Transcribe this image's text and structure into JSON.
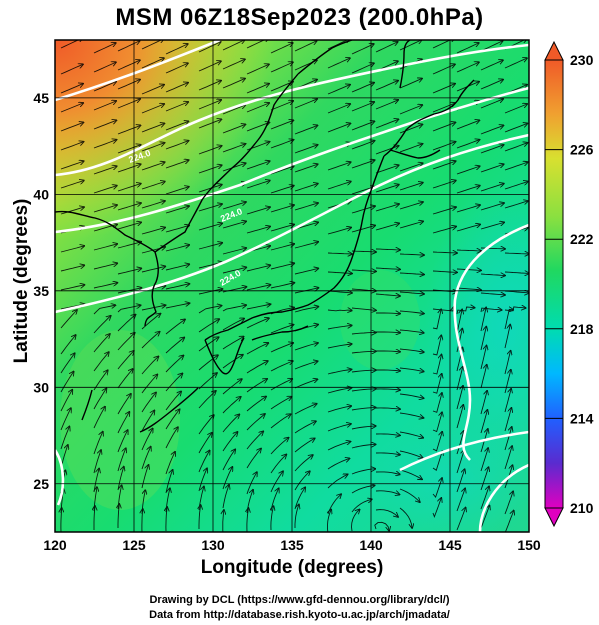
{
  "title": "MSM 06Z18Sep2023 (200.0hPa)",
  "xaxis": {
    "label": "Longitude (degrees)",
    "range": [
      120,
      150
    ],
    "ticks": [
      "120",
      "125",
      "130",
      "135",
      "140",
      "145",
      "150"
    ]
  },
  "yaxis": {
    "label": "Latitude  (degrees)",
    "range": [
      22.5,
      48
    ],
    "ticks": [
      "25",
      "30",
      "35",
      "40",
      "45"
    ]
  },
  "colorbar": {
    "range": [
      210,
      230
    ],
    "labels": [
      "230",
      "226",
      "222",
      "218",
      "214",
      "210"
    ],
    "colors": [
      "#e8006c",
      "#c00080",
      "#5a2bff",
      "#2060ff",
      "#00b0ff",
      "#00d8c0",
      "#00e080",
      "#20e050",
      "#8ae040",
      "#d8e030",
      "#f0a030",
      "#f06030"
    ]
  },
  "contour_labels": [
    "224.0",
    "224.0",
    "224.0"
  ],
  "credits": {
    "line1": "Drawing by DCL (https://www.gfd-dennou.org/library/dcl/)",
    "line2": "Data from http://database.rish.kyoto-u.ac.jp/arch/jmadata/"
  },
  "colors": {
    "grid": "#000000",
    "contour": "#ffffff",
    "coast": "#000000"
  }
}
